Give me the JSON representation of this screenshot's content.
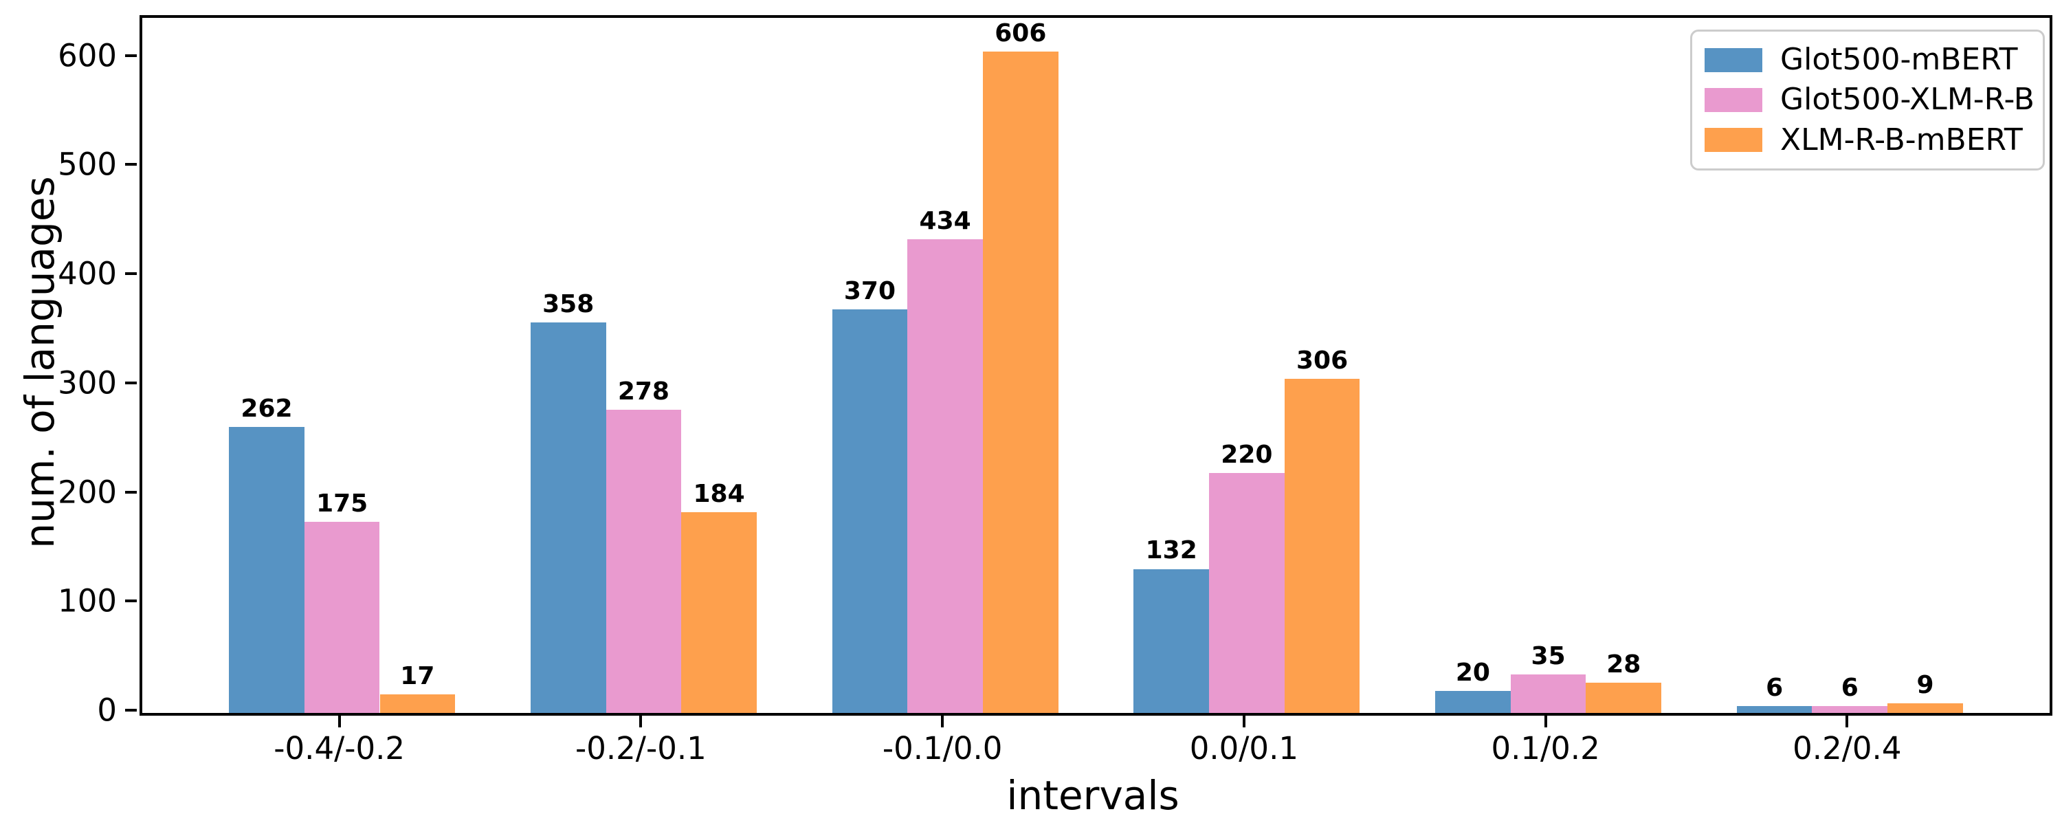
{
  "figure": {
    "background": "#ffffff",
    "frame_color": "#000000",
    "legend_border_color": "#cccccc"
  },
  "chart_data": {
    "type": "bar",
    "title": "",
    "xlabel": "intervals",
    "ylabel": "num. of languages",
    "categories": [
      "-0.4/-0.2",
      "-0.2/-0.1",
      "-0.1/0.0",
      "0.0/0.1",
      "0.1/0.2",
      "0.2/0.4"
    ],
    "series": [
      {
        "name": "Glot500-mBERT",
        "color": "#5793C3",
        "values": [
          262,
          358,
          370,
          132,
          20,
          6
        ]
      },
      {
        "name": "Glot500-XLM-R-B",
        "color": "#E99ACF",
        "values": [
          175,
          278,
          434,
          220,
          35,
          6
        ]
      },
      {
        "name": "XLM-R-B-mBERT",
        "color": "#FEA04D",
        "values": [
          17,
          184,
          606,
          306,
          28,
          9
        ]
      }
    ],
    "yticks": [
      0,
      100,
      200,
      300,
      400,
      500,
      600
    ],
    "ylim": [
      0,
      637
    ],
    "xlim": [
      -0.6625,
      5.6625
    ],
    "bar_width_units": 0.25,
    "grid": false,
    "legend_position": "upper right",
    "bar_labels": true
  }
}
